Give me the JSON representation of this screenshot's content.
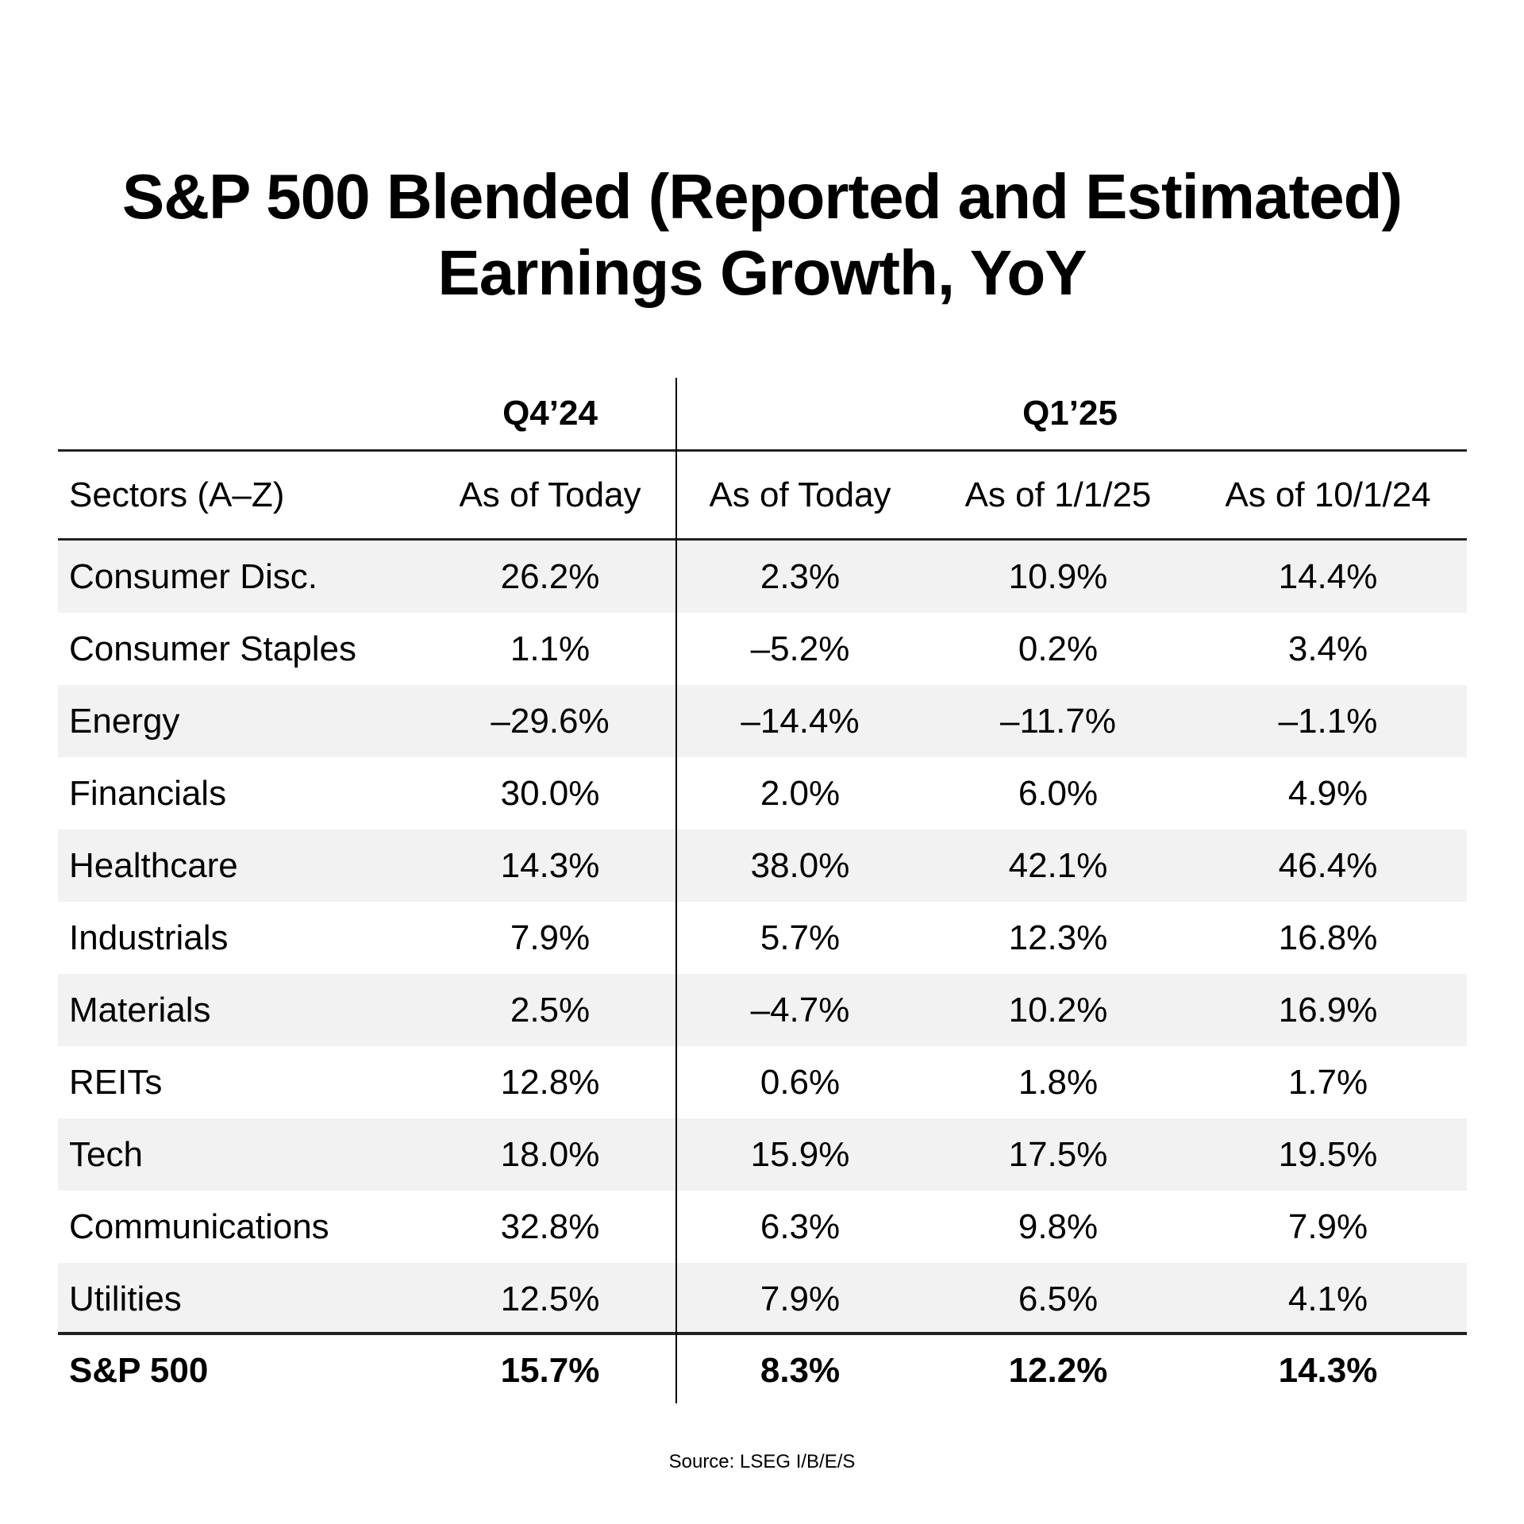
{
  "title": {
    "line1": "S&P 500 Blended (Reported and Estimated)",
    "line2": "Earnings Growth, YoY"
  },
  "table": {
    "group_headers": [
      "Q4’24",
      "Q1’25"
    ],
    "columns": [
      "Sectors (A–Z)",
      "As of Today",
      "As of Today",
      "As of 1/1/25",
      "As of 10/1/24"
    ],
    "rows": [
      {
        "sector": "Consumer Disc.",
        "values": [
          "26.2%",
          "2.3%",
          "10.9%",
          "14.4%"
        ]
      },
      {
        "sector": "Consumer Staples",
        "values": [
          "1.1%",
          "–5.2%",
          "0.2%",
          "3.4%"
        ]
      },
      {
        "sector": "Energy",
        "values": [
          "–29.6%",
          "–14.4%",
          "–11.7%",
          "–1.1%"
        ]
      },
      {
        "sector": "Financials",
        "values": [
          "30.0%",
          "2.0%",
          "6.0%",
          "4.9%"
        ]
      },
      {
        "sector": "Healthcare",
        "values": [
          "14.3%",
          "38.0%",
          "42.1%",
          "46.4%"
        ]
      },
      {
        "sector": "Industrials",
        "values": [
          "7.9%",
          "5.7%",
          "12.3%",
          "16.8%"
        ]
      },
      {
        "sector": "Materials",
        "values": [
          "2.5%",
          "–4.7%",
          "10.2%",
          "16.9%"
        ]
      },
      {
        "sector": "REITs",
        "values": [
          "12.8%",
          "0.6%",
          "1.8%",
          "1.7%"
        ]
      },
      {
        "sector": "Tech",
        "values": [
          "18.0%",
          "15.9%",
          "17.5%",
          "19.5%"
        ]
      },
      {
        "sector": "Communications",
        "values": [
          "32.8%",
          "6.3%",
          "9.8%",
          "7.9%"
        ]
      },
      {
        "sector": "Utilities",
        "values": [
          "12.5%",
          "7.9%",
          "6.5%",
          "4.1%"
        ]
      }
    ],
    "total": {
      "sector": "S&P 500",
      "values": [
        "15.7%",
        "8.3%",
        "12.2%",
        "14.3%"
      ]
    }
  },
  "source": "Source: LSEG I/B/E/S",
  "colors": {
    "stripe": "#f2f2f2",
    "text": "#000000",
    "rule": "#222222"
  }
}
